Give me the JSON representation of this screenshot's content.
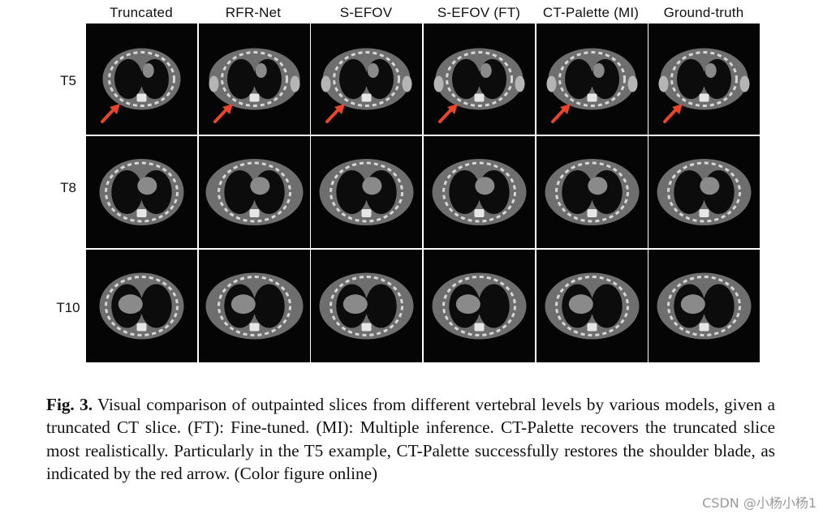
{
  "figure": {
    "column_headers": [
      "Truncated",
      "RFR-Net",
      "S-EFOV",
      "S-EFOV (FT)",
      "CT-Palette (MI)",
      "Ground-truth"
    ],
    "rows": [
      {
        "label": "T5",
        "arrow": true
      },
      {
        "label": "T8",
        "arrow": false
      },
      {
        "label": "T10",
        "arrow": false
      }
    ],
    "arrow_color": "#e8452a"
  },
  "caption": {
    "label": "Fig. 3.",
    "text": "Visual comparison of outpainted slices from different vertebral levels by various models, given a truncated CT slice. (FT): Fine-tuned. (MI): Multiple inference. CT-Palette recovers the truncated slice most realistically. Particularly in the T5 example, CT-Palette successfully restores the shoulder blade, as indicated by the red arrow. (Color figure online)"
  },
  "watermark": "CSDN @小杨小杨1"
}
